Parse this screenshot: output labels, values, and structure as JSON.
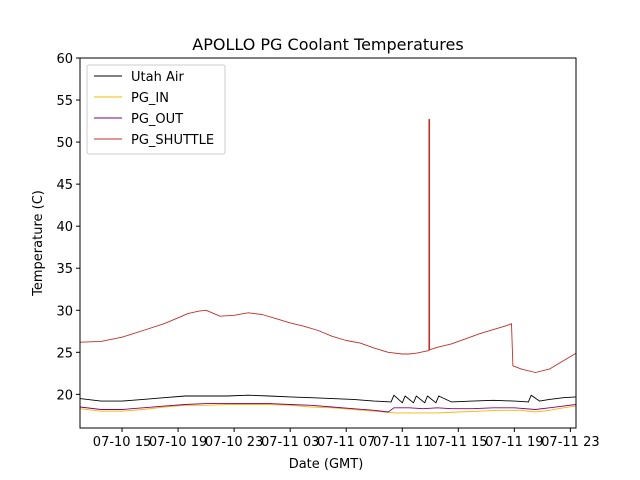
{
  "chart_data": {
    "type": "line",
    "title": "APOLLO PG Coolant Temperatures",
    "xlabel": "Date (GMT)",
    "ylabel": "Temperature (C)",
    "xlim": [
      12.0,
      47.4
    ],
    "ylim": [
      16.0,
      60.0
    ],
    "x_units": "hours since 07-10 00:00 GMT",
    "xticks": [
      {
        "value": 15,
        "label": "07-10 15"
      },
      {
        "value": 19,
        "label": "07-10 19"
      },
      {
        "value": 23,
        "label": "07-10 23"
      },
      {
        "value": 27,
        "label": "07-11 03"
      },
      {
        "value": 31,
        "label": "07-11 07"
      },
      {
        "value": 35,
        "label": "07-11 11"
      },
      {
        "value": 39,
        "label": "07-11 15"
      },
      {
        "value": 43,
        "label": "07-11 19"
      },
      {
        "value": 47,
        "label": "07-11 23"
      }
    ],
    "yticks": [
      20,
      25,
      30,
      35,
      40,
      45,
      50,
      55,
      60
    ],
    "legend_position": "top-left",
    "series": [
      {
        "name": "Utah Air",
        "color": "#000000",
        "x": [
          12.0,
          13.5,
          15.0,
          16.5,
          18.0,
          19.5,
          21.0,
          22.5,
          24.0,
          25.5,
          27.0,
          28.5,
          30.0,
          31.5,
          33.0,
          34.2,
          34.4,
          35.0,
          35.2,
          35.8,
          36.0,
          36.6,
          36.8,
          37.4,
          37.6,
          38.5,
          40.0,
          41.5,
          43.0,
          44.0,
          44.2,
          44.8,
          45.5,
          46.5,
          47.4
        ],
        "y": [
          19.5,
          19.2,
          19.2,
          19.4,
          19.6,
          19.8,
          19.8,
          19.8,
          19.9,
          19.8,
          19.7,
          19.6,
          19.5,
          19.4,
          19.2,
          19.1,
          19.9,
          19.0,
          19.8,
          19.0,
          19.8,
          19.0,
          19.8,
          19.0,
          19.8,
          19.1,
          19.2,
          19.3,
          19.2,
          19.1,
          19.9,
          19.2,
          19.4,
          19.6,
          19.7
        ]
      },
      {
        "name": "PG_IN",
        "color": "#f5b800",
        "x": [
          12.0,
          13.5,
          15.0,
          16.5,
          18.0,
          19.5,
          21.0,
          22.5,
          24.0,
          25.5,
          27.0,
          28.5,
          30.0,
          31.5,
          33.0,
          34.5,
          36.0,
          37.5,
          39.0,
          40.5,
          42.0,
          43.5,
          44.5,
          45.5,
          46.5,
          47.4
        ],
        "y": [
          18.3,
          18.0,
          18.0,
          18.2,
          18.5,
          18.7,
          18.7,
          18.8,
          18.8,
          18.8,
          18.7,
          18.5,
          18.4,
          18.2,
          18.0,
          17.8,
          17.8,
          17.8,
          17.9,
          18.0,
          18.1,
          18.1,
          17.9,
          18.1,
          18.4,
          18.6
        ]
      },
      {
        "name": "PG_OUT",
        "color": "#800080",
        "x": [
          12.0,
          13.5,
          15.0,
          16.5,
          18.0,
          19.5,
          21.0,
          22.5,
          24.0,
          25.5,
          27.0,
          28.5,
          30.0,
          31.5,
          33.0,
          34.0,
          34.4,
          35.5,
          36.5,
          37.5,
          38.5,
          40.0,
          41.5,
          43.0,
          44.5,
          45.5,
          46.5,
          47.4
        ],
        "y": [
          18.5,
          18.2,
          18.2,
          18.4,
          18.6,
          18.8,
          18.9,
          18.9,
          18.9,
          18.9,
          18.8,
          18.7,
          18.5,
          18.3,
          18.1,
          17.9,
          18.4,
          18.4,
          18.3,
          18.4,
          18.3,
          18.3,
          18.4,
          18.4,
          18.2,
          18.4,
          18.6,
          18.8
        ]
      },
      {
        "name": "PG_SHUTTLE",
        "color": "#c0302a",
        "x": [
          12.0,
          13.5,
          15.0,
          16.5,
          18.0,
          19.0,
          19.7,
          20.5,
          21.0,
          22.0,
          23.0,
          24.0,
          25.0,
          26.0,
          27.0,
          28.0,
          29.0,
          30.0,
          31.0,
          32.0,
          33.0,
          34.0,
          35.0,
          35.5,
          36.0,
          36.9,
          36.9,
          36.95,
          36.95,
          37.5,
          38.5,
          39.5,
          40.5,
          41.5,
          42.5,
          42.8,
          42.9,
          43.5,
          44.5,
          45.5,
          46.5,
          47.4
        ],
        "y": [
          26.2,
          26.3,
          26.8,
          27.6,
          28.4,
          29.1,
          29.6,
          29.9,
          30.0,
          29.3,
          29.4,
          29.7,
          29.5,
          29.0,
          28.5,
          28.1,
          27.6,
          26.9,
          26.4,
          26.1,
          25.5,
          25.0,
          24.8,
          24.8,
          24.9,
          25.2,
          52.7,
          52.7,
          25.3,
          25.6,
          26.0,
          26.6,
          27.2,
          27.7,
          28.2,
          28.4,
          23.4,
          23.0,
          22.6,
          23.0,
          24.0,
          24.9
        ]
      }
    ]
  }
}
